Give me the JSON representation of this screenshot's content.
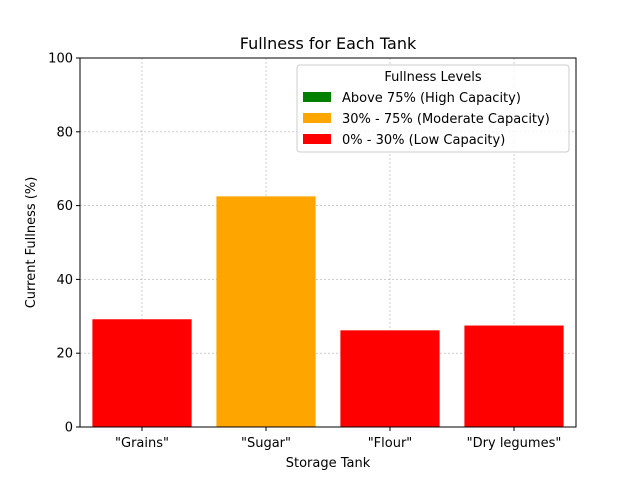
{
  "chart_data": {
    "type": "bar",
    "title": "Fullness for Each Tank",
    "xlabel": "Storage Tank",
    "ylabel": "Current Fullness (%)",
    "categories": [
      "\"Grains\"",
      "\"Sugar\"",
      "\"Flour\"",
      "\"Dry legumes\""
    ],
    "values": [
      29.2,
      62.5,
      26.2,
      27.5
    ],
    "bar_colors": [
      "#ff0000",
      "#ffa500",
      "#ff0000",
      "#ff0000"
    ],
    "ylim": [
      0,
      100
    ],
    "yticks": [
      0,
      20,
      40,
      60,
      80,
      100
    ],
    "grid": true,
    "legend": {
      "title": "Fullness Levels",
      "placement": "top-right",
      "entries": [
        {
          "label": "Above 75% (High Capacity)",
          "color": "#008000"
        },
        {
          "label": "30% - 75% (Moderate Capacity)",
          "color": "#ffa500"
        },
        {
          "label": "0% - 30% (Low Capacity)",
          "color": "#ff0000"
        }
      ]
    }
  }
}
